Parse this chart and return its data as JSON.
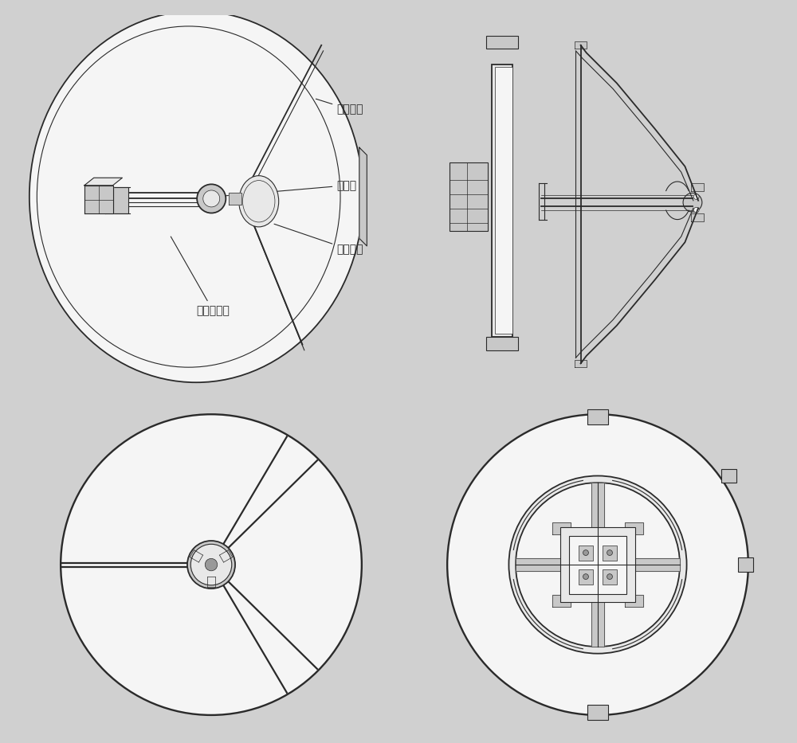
{
  "bg_color": "#d0d0d0",
  "line_color": "#2a2a2a",
  "white_fill": "#f5f5f5",
  "light_gray": "#e8e8e8",
  "mid_gray": "#c8c8c8",
  "dark_gray": "#999999",
  "labels": {
    "main_reflector": "主反射面",
    "support_rod": "支撑杆",
    "sub_reflector": "副反射面",
    "feed": "四喘叭馈源"
  },
  "label_fontsize": 10
}
